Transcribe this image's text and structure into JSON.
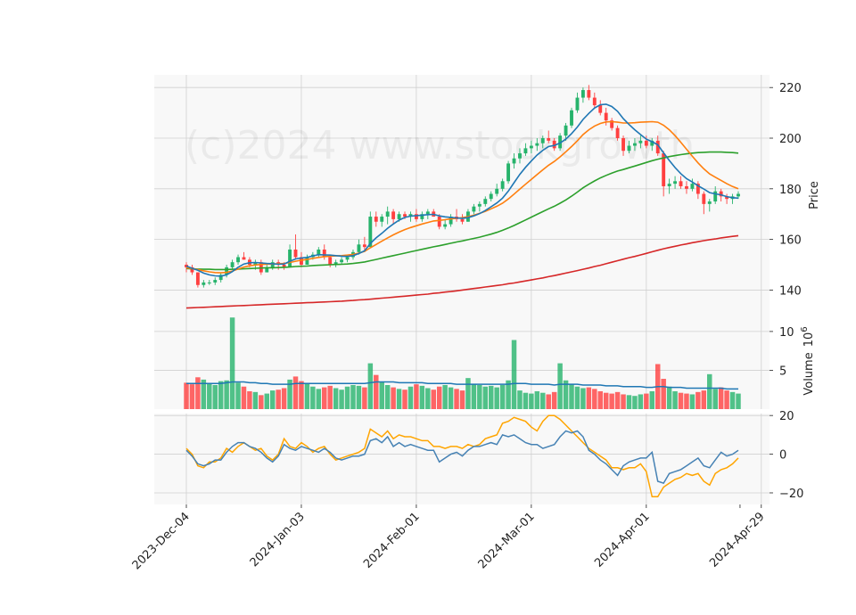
{
  "chart_data": {
    "type": "candlestick",
    "watermark": "(c)2024 www.stockgrowth",
    "colors": {
      "up": "#26b36b",
      "down": "#ff4040",
      "ma_short": "#1f77b4",
      "ma_mid": "#ff7f0e",
      "ma_long": "#2ca02c",
      "ma_200": "#d62728",
      "vol_ma": "#1f77b4",
      "osc_a": "#4682b4",
      "osc_b": "#ffa500",
      "panel_bg": "#f8f8f8",
      "grid": "#d0d0d0"
    },
    "x_tick_labels": [
      "2023-Dec-04",
      "2024-Jan-03",
      "2024-Feb-01",
      "2024-Mar-01",
      "2024-Apr-01",
      "2024-Apr-29"
    ],
    "x_tick_indices": [
      0,
      20,
      40,
      60,
      80,
      100
    ],
    "price_panel": {
      "ylabel": "Price",
      "yticks": [
        140,
        160,
        180,
        200,
        220
      ],
      "ylim": [
        131,
        225
      ],
      "ohlc": [
        [
          150,
          151,
          147,
          149
        ],
        [
          149,
          150,
          146,
          147
        ],
        [
          147,
          147,
          141,
          142
        ],
        [
          142,
          144,
          141,
          143
        ],
        [
          143,
          144,
          142,
          143
        ],
        [
          143,
          145,
          142,
          144
        ],
        [
          144,
          147,
          143,
          146
        ],
        [
          146,
          150,
          145,
          149
        ],
        [
          149,
          152,
          148,
          151
        ],
        [
          151,
          154,
          150,
          153
        ],
        [
          153,
          155,
          152,
          152
        ],
        [
          152,
          153,
          149,
          150
        ],
        [
          150,
          152,
          148,
          151
        ],
        [
          151,
          152,
          146,
          147
        ],
        [
          147,
          150,
          147,
          149
        ],
        [
          149,
          152,
          148,
          151
        ],
        [
          151,
          152,
          148,
          150
        ],
        [
          150,
          151,
          148,
          149
        ],
        [
          149,
          158,
          149,
          156
        ],
        [
          156,
          162,
          152,
          153
        ],
        [
          153,
          155,
          149,
          150
        ],
        [
          150,
          154,
          150,
          153
        ],
        [
          153,
          155,
          152,
          154
        ],
        [
          154,
          157,
          153,
          156
        ],
        [
          156,
          158,
          152,
          153
        ],
        [
          153,
          154,
          149,
          150
        ],
        [
          150,
          152,
          149,
          151
        ],
        [
          151,
          153,
          150,
          152
        ],
        [
          152,
          154,
          151,
          153
        ],
        [
          153,
          156,
          152,
          155
        ],
        [
          155,
          160,
          154,
          158
        ],
        [
          158,
          161,
          155,
          157
        ],
        [
          157,
          171,
          157,
          169
        ],
        [
          169,
          171,
          165,
          167
        ],
        [
          167,
          170,
          165,
          169
        ],
        [
          169,
          173,
          166,
          171
        ],
        [
          171,
          172,
          166,
          168
        ],
        [
          168,
          171,
          167,
          170
        ],
        [
          170,
          171,
          168,
          169
        ],
        [
          169,
          171,
          167,
          170
        ],
        [
          170,
          172,
          167,
          168
        ],
        [
          168,
          171,
          167,
          170
        ],
        [
          170,
          172,
          168,
          171
        ],
        [
          171,
          172,
          169,
          169
        ],
        [
          169,
          170,
          164,
          165
        ],
        [
          165,
          168,
          164,
          166
        ],
        [
          166,
          170,
          165,
          169
        ],
        [
          169,
          172,
          167,
          168
        ],
        [
          168,
          170,
          166,
          167
        ],
        [
          167,
          172,
          167,
          171
        ],
        [
          171,
          174,
          170,
          173
        ],
        [
          173,
          175,
          171,
          174
        ],
        [
          174,
          177,
          173,
          176
        ],
        [
          176,
          179,
          175,
          178
        ],
        [
          178,
          182,
          177,
          180
        ],
        [
          180,
          184,
          179,
          183
        ],
        [
          183,
          191,
          182,
          190
        ],
        [
          190,
          194,
          188,
          192
        ],
        [
          192,
          196,
          190,
          194
        ],
        [
          194,
          198,
          193,
          196
        ],
        [
          196,
          199,
          194,
          197
        ],
        [
          197,
          200,
          195,
          198
        ],
        [
          198,
          201,
          196,
          200
        ],
        [
          200,
          203,
          198,
          199
        ],
        [
          199,
          200,
          195,
          196
        ],
        [
          196,
          202,
          195,
          201
        ],
        [
          201,
          206,
          199,
          205
        ],
        [
          205,
          212,
          204,
          211
        ],
        [
          211,
          218,
          210,
          216
        ],
        [
          216,
          220,
          214,
          219
        ],
        [
          219,
          221,
          215,
          216
        ],
        [
          216,
          218,
          212,
          213
        ],
        [
          213,
          215,
          209,
          210
        ],
        [
          210,
          212,
          205,
          207
        ],
        [
          207,
          208,
          203,
          204
        ],
        [
          204,
          205,
          199,
          200
        ],
        [
          200,
          201,
          193,
          195
        ],
        [
          195,
          199,
          194,
          197
        ],
        [
          197,
          200,
          195,
          198
        ],
        [
          198,
          201,
          196,
          199
        ],
        [
          199,
          201,
          196,
          197
        ],
        [
          197,
          200,
          195,
          199
        ],
        [
          199,
          201,
          193,
          194
        ],
        [
          194,
          195,
          177,
          181
        ],
        [
          181,
          184,
          178,
          182
        ],
        [
          182,
          185,
          180,
          183
        ],
        [
          183,
          185,
          180,
          181
        ],
        [
          181,
          183,
          178,
          180
        ],
        [
          180,
          184,
          179,
          182
        ],
        [
          182,
          183,
          176,
          178
        ],
        [
          178,
          179,
          170,
          174
        ],
        [
          174,
          176,
          171,
          175
        ],
        [
          175,
          181,
          174,
          179
        ],
        [
          179,
          180,
          175,
          177
        ],
        [
          177,
          178,
          174,
          176
        ],
        [
          176,
          178,
          174,
          177
        ],
        [
          177,
          179,
          176,
          178
        ]
      ],
      "ma_short": [
        149.5,
        148.6,
        147.8,
        146.7,
        146.0,
        145.6,
        145.5,
        146.0,
        147.3,
        149.0,
        150.3,
        150.8,
        150.9,
        150.7,
        150.5,
        150.4,
        150.2,
        150.3,
        151.4,
        152.3,
        152.7,
        152.9,
        153.5,
        154.0,
        153.9,
        153.8,
        153.6,
        153.4,
        153.3,
        153.6,
        154.4,
        155.5,
        158.4,
        160.6,
        162.4,
        164.4,
        166.1,
        167.6,
        168.7,
        169.2,
        169.4,
        169.6,
        169.8,
        169.9,
        169.3,
        168.9,
        168.7,
        168.5,
        168.3,
        168.6,
        169.3,
        170.2,
        171.4,
        172.9,
        174.4,
        176.3,
        179.1,
        182.4,
        185.7,
        188.5,
        191.0,
        193.3,
        195.2,
        196.7,
        197.1,
        198.1,
        199.6,
        201.8,
        204.4,
        207.4,
        209.8,
        211.9,
        213.2,
        213.4,
        212.5,
        210.6,
        207.7,
        205.4,
        203.3,
        201.4,
        199.6,
        198.6,
        197.4,
        194.2,
        191.2,
        188.4,
        186.0,
        184.0,
        182.7,
        181.2,
        179.9,
        178.5,
        178.0,
        177.6,
        176.9,
        176.5,
        176.3
      ],
      "ma_mid": [
        148.8,
        148.5,
        148.1,
        147.6,
        147.2,
        146.9,
        146.8,
        147.0,
        147.5,
        148.3,
        149.1,
        149.6,
        149.9,
        150.1,
        150.2,
        150.3,
        150.4,
        150.5,
        150.9,
        151.4,
        151.8,
        152.1,
        152.5,
        152.9,
        153.2,
        153.4,
        153.5,
        153.6,
        153.8,
        154.1,
        154.6,
        155.3,
        156.7,
        158.0,
        159.3,
        160.6,
        161.8,
        162.9,
        163.9,
        164.7,
        165.4,
        166.1,
        166.7,
        167.3,
        167.5,
        167.8,
        168.1,
        168.4,
        168.6,
        169.0,
        169.6,
        170.3,
        171.1,
        172.1,
        173.1,
        174.3,
        176.0,
        177.9,
        179.9,
        181.8,
        183.7,
        185.6,
        187.5,
        189.3,
        190.8,
        192.6,
        194.6,
        196.7,
        199.0,
        201.4,
        203.3,
        204.8,
        205.8,
        206.4,
        206.5,
        206.3,
        206.0,
        206.0,
        206.1,
        206.3,
        206.4,
        206.5,
        206.3,
        205.1,
        203.3,
        201.0,
        198.4,
        195.6,
        192.9,
        190.2,
        187.9,
        185.9,
        184.6,
        183.3,
        182.0,
        180.9,
        180.0
      ],
      "ma_long": [
        148.5,
        148.4,
        148.3,
        148.2,
        148.2,
        148.1,
        148.1,
        148.1,
        148.2,
        148.3,
        148.4,
        148.5,
        148.6,
        148.7,
        148.8,
        148.8,
        148.9,
        149.0,
        149.1,
        149.3,
        149.4,
        149.5,
        149.7,
        149.8,
        149.9,
        150.0,
        150.1,
        150.2,
        150.3,
        150.5,
        150.8,
        151.1,
        151.6,
        152.1,
        152.6,
        153.1,
        153.6,
        154.1,
        154.6,
        155.1,
        155.6,
        156.1,
        156.6,
        157.1,
        157.5,
        158.0,
        158.5,
        159.0,
        159.4,
        159.9,
        160.4,
        160.9,
        161.5,
        162.1,
        162.8,
        163.6,
        164.5,
        165.5,
        166.6,
        167.7,
        168.8,
        169.9,
        171.0,
        172.1,
        173.1,
        174.3,
        175.6,
        177.1,
        178.7,
        180.4,
        181.8,
        183.1,
        184.3,
        185.3,
        186.2,
        187.0,
        187.6,
        188.3,
        189.0,
        189.7,
        190.4,
        191.1,
        191.7,
        192.2,
        192.7,
        193.1,
        193.5,
        193.8,
        194.1,
        194.3,
        194.4,
        194.5,
        194.5,
        194.5,
        194.4,
        194.3,
        194.1
      ],
      "ma_200": [
        132.9,
        133.0,
        133.1,
        133.2,
        133.3,
        133.4,
        133.5,
        133.6,
        133.7,
        133.8,
        133.9,
        134.0,
        134.1,
        134.2,
        134.3,
        134.4,
        134.5,
        134.6,
        134.7,
        134.8,
        134.9,
        135.0,
        135.1,
        135.2,
        135.3,
        135.4,
        135.5,
        135.6,
        135.8,
        135.9,
        136.1,
        136.2,
        136.4,
        136.6,
        136.8,
        137.0,
        137.2,
        137.4,
        137.6,
        137.8,
        138.0,
        138.2,
        138.4,
        138.7,
        138.9,
        139.2,
        139.4,
        139.7,
        140.0,
        140.3,
        140.6,
        140.9,
        141.2,
        141.5,
        141.8,
        142.1,
        142.5,
        142.8,
        143.2,
        143.6,
        144.0,
        144.4,
        144.8,
        145.3,
        145.7,
        146.2,
        146.7,
        147.2,
        147.7,
        148.2,
        148.7,
        149.3,
        149.8,
        150.4,
        151.0,
        151.6,
        152.2,
        152.8,
        153.3,
        153.9,
        154.5,
        155.1,
        155.7,
        156.3,
        156.8,
        157.3,
        157.8,
        158.2,
        158.7,
        159.1,
        159.5,
        159.9,
        160.2,
        160.6,
        160.9,
        161.2,
        161.5
      ]
    },
    "volume_panel": {
      "ylabel": "Volume  10^6",
      "ylabel_main": "Volume",
      "ylabel_exp": "10",
      "ylabel_exp_sup": "6",
      "yticks": [
        5,
        10
      ],
      "ylim": [
        0,
        12.4
      ],
      "values": [
        3.4,
        3.2,
        4.1,
        3.8,
        3.3,
        3.1,
        3.6,
        3.7,
        11.8,
        3.4,
        2.9,
        2.3,
        2.2,
        1.8,
        2.0,
        2.4,
        2.5,
        2.7,
        3.8,
        4.2,
        3.6,
        3.3,
        2.9,
        2.6,
        2.8,
        3.0,
        2.7,
        2.5,
        2.9,
        3.1,
        3.0,
        2.8,
        5.9,
        4.4,
        3.5,
        3.1,
        2.8,
        2.6,
        2.5,
        2.9,
        3.2,
        3.0,
        2.7,
        2.5,
        2.9,
        3.1,
        2.8,
        2.6,
        2.4,
        4.0,
        3.2,
        3.1,
        2.9,
        3.0,
        2.8,
        3.1,
        3.7,
        8.9,
        2.4,
        2.1,
        2.0,
        2.3,
        2.1,
        1.9,
        2.2,
        5.9,
        3.7,
        3.2,
        2.9,
        2.7,
        2.8,
        2.6,
        2.3,
        2.1,
        2.0,
        2.2,
        1.9,
        1.8,
        1.7,
        1.9,
        2.0,
        2.3,
        5.8,
        3.9,
        2.9,
        2.3,
        2.1,
        2.0,
        1.9,
        2.2,
        2.4,
        4.5,
        2.6,
        2.8,
        2.4,
        2.2,
        2.0
      ],
      "ma": [
        3.3,
        3.3,
        3.3,
        3.3,
        3.3,
        3.3,
        3.3,
        3.4,
        3.5,
        3.5,
        3.5,
        3.4,
        3.4,
        3.3,
        3.3,
        3.2,
        3.2,
        3.2,
        3.2,
        3.3,
        3.3,
        3.3,
        3.3,
        3.3,
        3.3,
        3.3,
        3.3,
        3.3,
        3.3,
        3.3,
        3.3,
        3.3,
        3.4,
        3.5,
        3.5,
        3.5,
        3.5,
        3.4,
        3.4,
        3.4,
        3.4,
        3.4,
        3.3,
        3.3,
        3.3,
        3.3,
        3.3,
        3.2,
        3.2,
        3.2,
        3.2,
        3.2,
        3.2,
        3.2,
        3.2,
        3.2,
        3.2,
        3.3,
        3.3,
        3.3,
        3.2,
        3.2,
        3.2,
        3.2,
        3.1,
        3.2,
        3.2,
        3.2,
        3.2,
        3.1,
        3.1,
        3.1,
        3.1,
        3.0,
        3.0,
        3.0,
        2.9,
        2.9,
        2.9,
        2.9,
        2.8,
        2.8,
        2.9,
        2.9,
        2.8,
        2.8,
        2.8,
        2.7,
        2.7,
        2.7,
        2.7,
        2.7,
        2.7,
        2.7,
        2.6,
        2.6,
        2.6
      ]
    },
    "oscillator_panel": {
      "yticks": [
        -20,
        0,
        20
      ],
      "ylim": [
        -26,
        21
      ],
      "series_a": [
        2,
        -1,
        -5,
        -6,
        -5,
        -3,
        -3,
        1,
        4,
        6,
        6,
        4,
        3,
        1,
        -2,
        -4,
        -1,
        5,
        3,
        2,
        4,
        3,
        2,
        1,
        3,
        1,
        -2,
        -3,
        -2,
        -1,
        -1,
        0,
        7,
        8,
        6,
        9,
        4,
        6,
        4,
        5,
        4,
        3,
        2,
        2,
        -4,
        -2,
        0,
        1,
        -1,
        2,
        4,
        4,
        5,
        6,
        5,
        10,
        9,
        10,
        8,
        6,
        5,
        5,
        3,
        4,
        5,
        9,
        12,
        11,
        12,
        9,
        2,
        0,
        -3,
        -5,
        -8,
        -11,
        -6,
        -4,
        -3,
        -2,
        -2,
        1,
        -14,
        -15,
        -10,
        -9,
        -8,
        -6,
        -4,
        -2,
        -6,
        -7,
        -3,
        1,
        -1,
        0,
        2
      ],
      "series_b": [
        3,
        0,
        -6,
        -7,
        -4,
        -4,
        -2,
        3,
        1,
        4,
        6,
        4,
        2,
        3,
        -1,
        -3,
        0,
        8,
        4,
        3,
        6,
        4,
        1,
        3,
        4,
        0,
        -3,
        -2,
        -1,
        0,
        1,
        3,
        13,
        11,
        9,
        12,
        8,
        10,
        9,
        9,
        8,
        7,
        7,
        4,
        4,
        3,
        4,
        4,
        3,
        5,
        4,
        5,
        8,
        9,
        10,
        16,
        17,
        19,
        18,
        17,
        14,
        12,
        17,
        20,
        20,
        18,
        15,
        12,
        9,
        6,
        3,
        1,
        -1,
        -3,
        -7,
        -7,
        -8,
        -7,
        -7,
        -5,
        -9,
        -22,
        -22,
        -17,
        -15,
        -13,
        -12,
        -10,
        -11,
        -10,
        -14,
        -16,
        -10,
        -8,
        -7,
        -5,
        -2
      ]
    }
  }
}
